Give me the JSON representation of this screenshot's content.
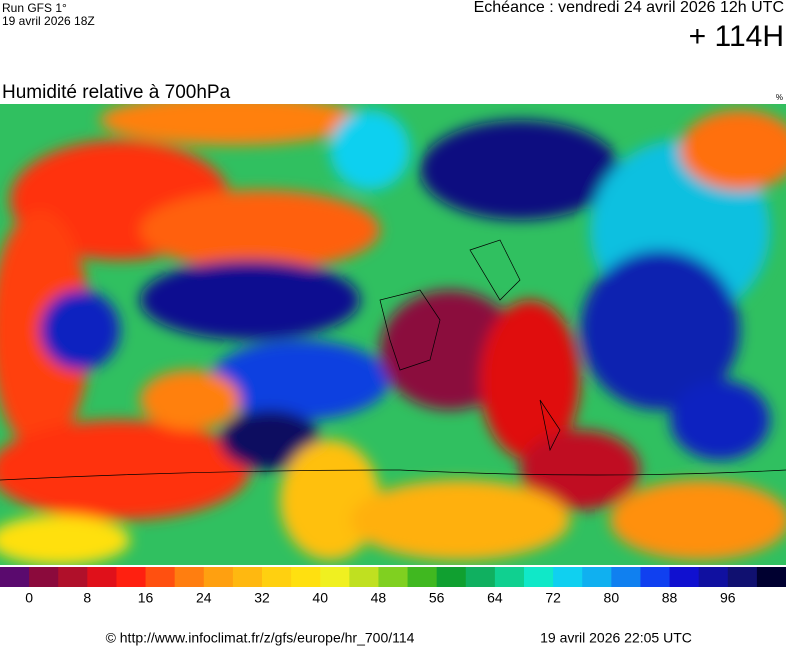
{
  "header": {
    "run": "Run GFS 1°",
    "run_date": "19 avril 2026 18Z",
    "valid": "Echéance : vendredi 24 avril 2026 12h UTC",
    "lead": "+ 114H",
    "title": "Humidité relative à 700hPa",
    "unit": "%"
  },
  "legend": {
    "colors": [
      "#5a0a6e",
      "#8b0a3c",
      "#b0102a",
      "#e0101a",
      "#ff2010",
      "#ff5010",
      "#ff7e10",
      "#ffa010",
      "#ffb810",
      "#ffd010",
      "#ffe010",
      "#f0f020",
      "#c0e020",
      "#80d020",
      "#40b820",
      "#10a030",
      "#10b060",
      "#10d090",
      "#10e8c8",
      "#10d0f0",
      "#10b0f0",
      "#1080f0",
      "#1040f0",
      "#1010d0",
      "#1010a0",
      "#101070",
      "#000030"
    ],
    "ticks": [
      0,
      8,
      16,
      24,
      32,
      40,
      48,
      56,
      64,
      72,
      80,
      88,
      96
    ]
  },
  "footer": {
    "source": "© http://www.infoclimat.fr/z/gfs/europe/hr_700/114",
    "generated": "19 avril 2026 22:05 UTC"
  }
}
